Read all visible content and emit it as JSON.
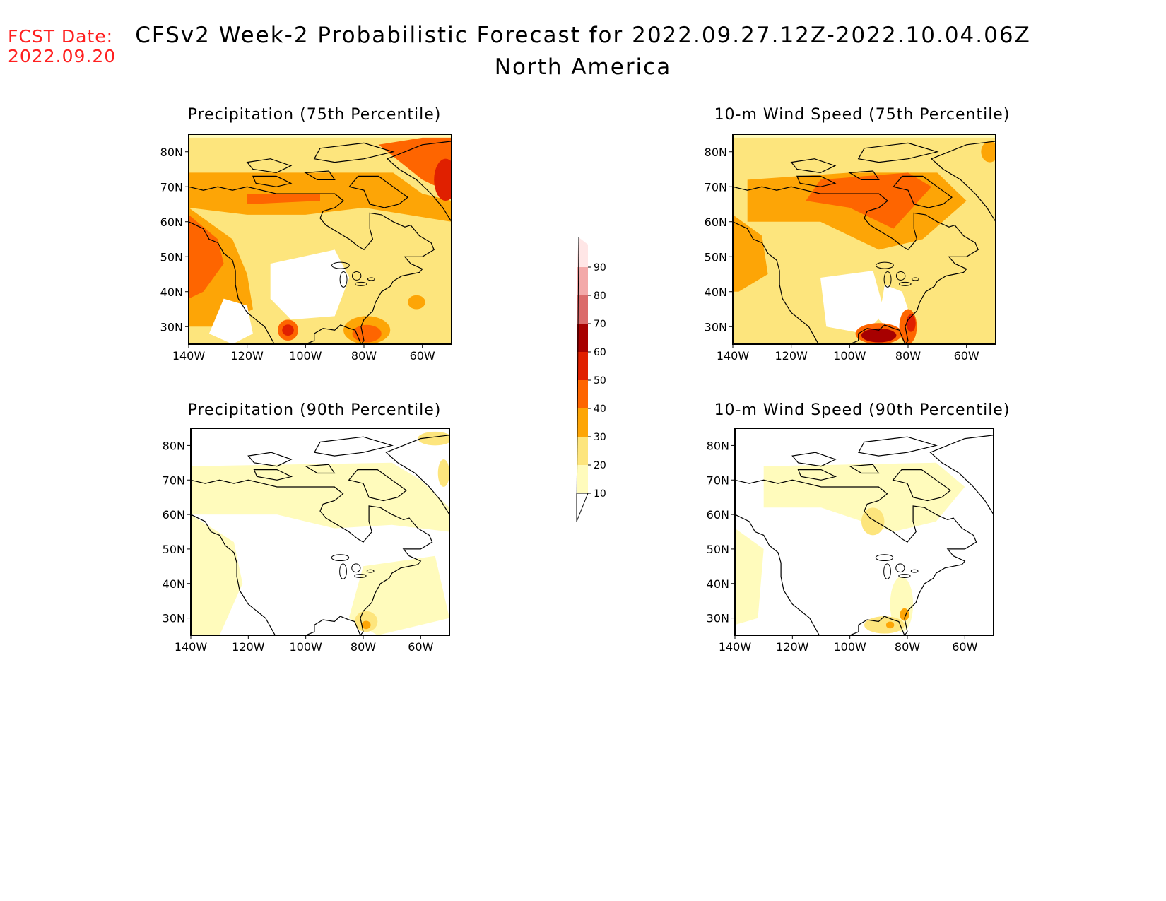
{
  "header": {
    "fcst_label": "FCST Date:",
    "fcst_date": "2022.09.20",
    "title": "CFSv2 Week-2 Probabilistic Forecast for 2022.09.27.12Z-2022.10.04.06Z",
    "subtitle": "North America"
  },
  "colors": {
    "10": "#fffbbc",
    "20": "#fde57d",
    "30": "#fda506",
    "40": "#fe6500",
    "50": "#e02000",
    "60": "#a70000",
    "70": "#db6b6b",
    "80": "#f3a9a9",
    "90": "#ffe6e6"
  },
  "colorbar": {
    "levels": [
      "10",
      "20",
      "30",
      "40",
      "50",
      "60",
      "70",
      "80",
      "90"
    ]
  },
  "chart_data": [
    {
      "type": "heatmap",
      "title": "Precipitation (75th Percentile)",
      "x_ticks": [
        "140W",
        "120W",
        "100W",
        "80W",
        "60W"
      ],
      "y_ticks": [
        "80N",
        "70N",
        "60N",
        "50N",
        "40N",
        "30N"
      ],
      "dominant_level": "20",
      "regions": [
        {
          "area": "northern Canada band 65-70N",
          "level": "30"
        },
        {
          "area": "Greenland / Baffin Bay",
          "level": "40"
        },
        {
          "area": "Pacific Northwest coast",
          "level": "30"
        },
        {
          "area": "NW Mexico (~105W, 28N)",
          "level": "50"
        },
        {
          "area": "Florida / SE US coast",
          "level": "40"
        },
        {
          "area": "Central US Plains",
          "level": "0"
        }
      ]
    },
    {
      "type": "heatmap",
      "title": "10-m Wind Speed (75th Percentile)",
      "x_ticks": [
        "140W",
        "120W",
        "100W",
        "80W",
        "60W"
      ],
      "y_ticks": [
        "80N",
        "70N",
        "60N",
        "50N",
        "40N",
        "30N"
      ],
      "dominant_level": "20",
      "regions": [
        {
          "area": "Canadian Arctic 60-70N",
          "level": "40"
        },
        {
          "area": "Hudson Bay",
          "level": "40"
        },
        {
          "area": "Gulf of Mexico (~90W, 28N)",
          "level": "60"
        },
        {
          "area": "Florida east coast",
          "level": "50"
        },
        {
          "area": "Southern Plains",
          "level": "0"
        }
      ]
    },
    {
      "type": "heatmap",
      "title": "Precipitation (90th Percentile)",
      "x_ticks": [
        "140W",
        "120W",
        "100W",
        "80W",
        "60W"
      ],
      "y_ticks": [
        "80N",
        "70N",
        "60N",
        "50N",
        "40N",
        "30N"
      ],
      "dominant_level": "10",
      "regions": [
        {
          "area": "Greenland coast",
          "level": "20"
        },
        {
          "area": "Florida (~80W, 28N)",
          "level": "30"
        },
        {
          "area": "Interior US and Canada",
          "level": "0"
        }
      ]
    },
    {
      "type": "heatmap",
      "title": "10-m Wind Speed (90th Percentile)",
      "x_ticks": [
        "140W",
        "120W",
        "100W",
        "80W",
        "60W"
      ],
      "y_ticks": [
        "80N",
        "70N",
        "60N",
        "50N",
        "40N",
        "30N"
      ],
      "dominant_level": "10",
      "regions": [
        {
          "area": "Hudson Bay / Arctic",
          "level": "20"
        },
        {
          "area": "Gulf of Mexico (~85W, 28N)",
          "level": "30"
        },
        {
          "area": "Florida coast",
          "level": "30"
        },
        {
          "area": "Western and central US",
          "level": "0"
        }
      ]
    }
  ]
}
